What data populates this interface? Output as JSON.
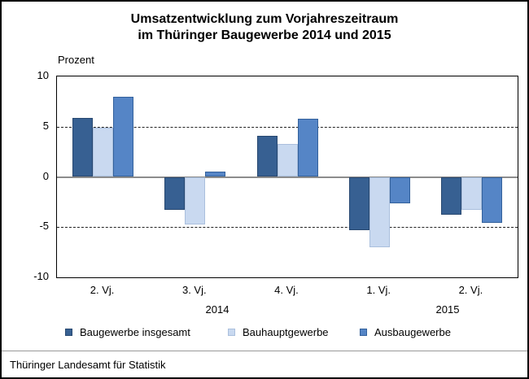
{
  "title": {
    "line1": "Umsatzentwicklung zum Vorjahreszeitraum",
    "line2": "im Thüringer Baugewerbe 2014 und 2015"
  },
  "axis": {
    "unit_label": "Prozent",
    "y_ticks": [
      10,
      5,
      0,
      -5,
      -10
    ]
  },
  "chart_data": {
    "type": "bar",
    "title": "Umsatzentwicklung zum Vorjahreszeitraum im Thüringer Baugewerbe 2014 und 2015",
    "xlabel": "",
    "ylabel": "Prozent",
    "ylim": [
      -10,
      10
    ],
    "gridlines": [
      5,
      -5
    ],
    "grid_style": "dashed",
    "legend_position": "bottom",
    "categories": [
      "2. Vj.",
      "3. Vj.",
      "4. Vj.",
      "1. Vj.",
      "2. Vj."
    ],
    "years": [
      "2014",
      "2015"
    ],
    "series": [
      {
        "name": "Baugewerbe insgesamt",
        "color": "#376092",
        "border_color": "#284870",
        "values": [
          5.9,
          -3.3,
          4.1,
          -5.3,
          -3.8
        ]
      },
      {
        "name": "Bauhauptgewerbe",
        "color": "#C9D9F0",
        "border_color": "#AABFDD",
        "values": [
          4.9,
          -4.7,
          3.3,
          -7.0,
          -3.3
        ]
      },
      {
        "name": "Ausbaugewerbe",
        "color": "#5585C6",
        "border_color": "#33619C",
        "values": [
          8.0,
          0.5,
          5.8,
          -2.6,
          -4.6
        ]
      }
    ]
  },
  "footer": {
    "source": "Thüringer Landesamt für Statistik"
  }
}
